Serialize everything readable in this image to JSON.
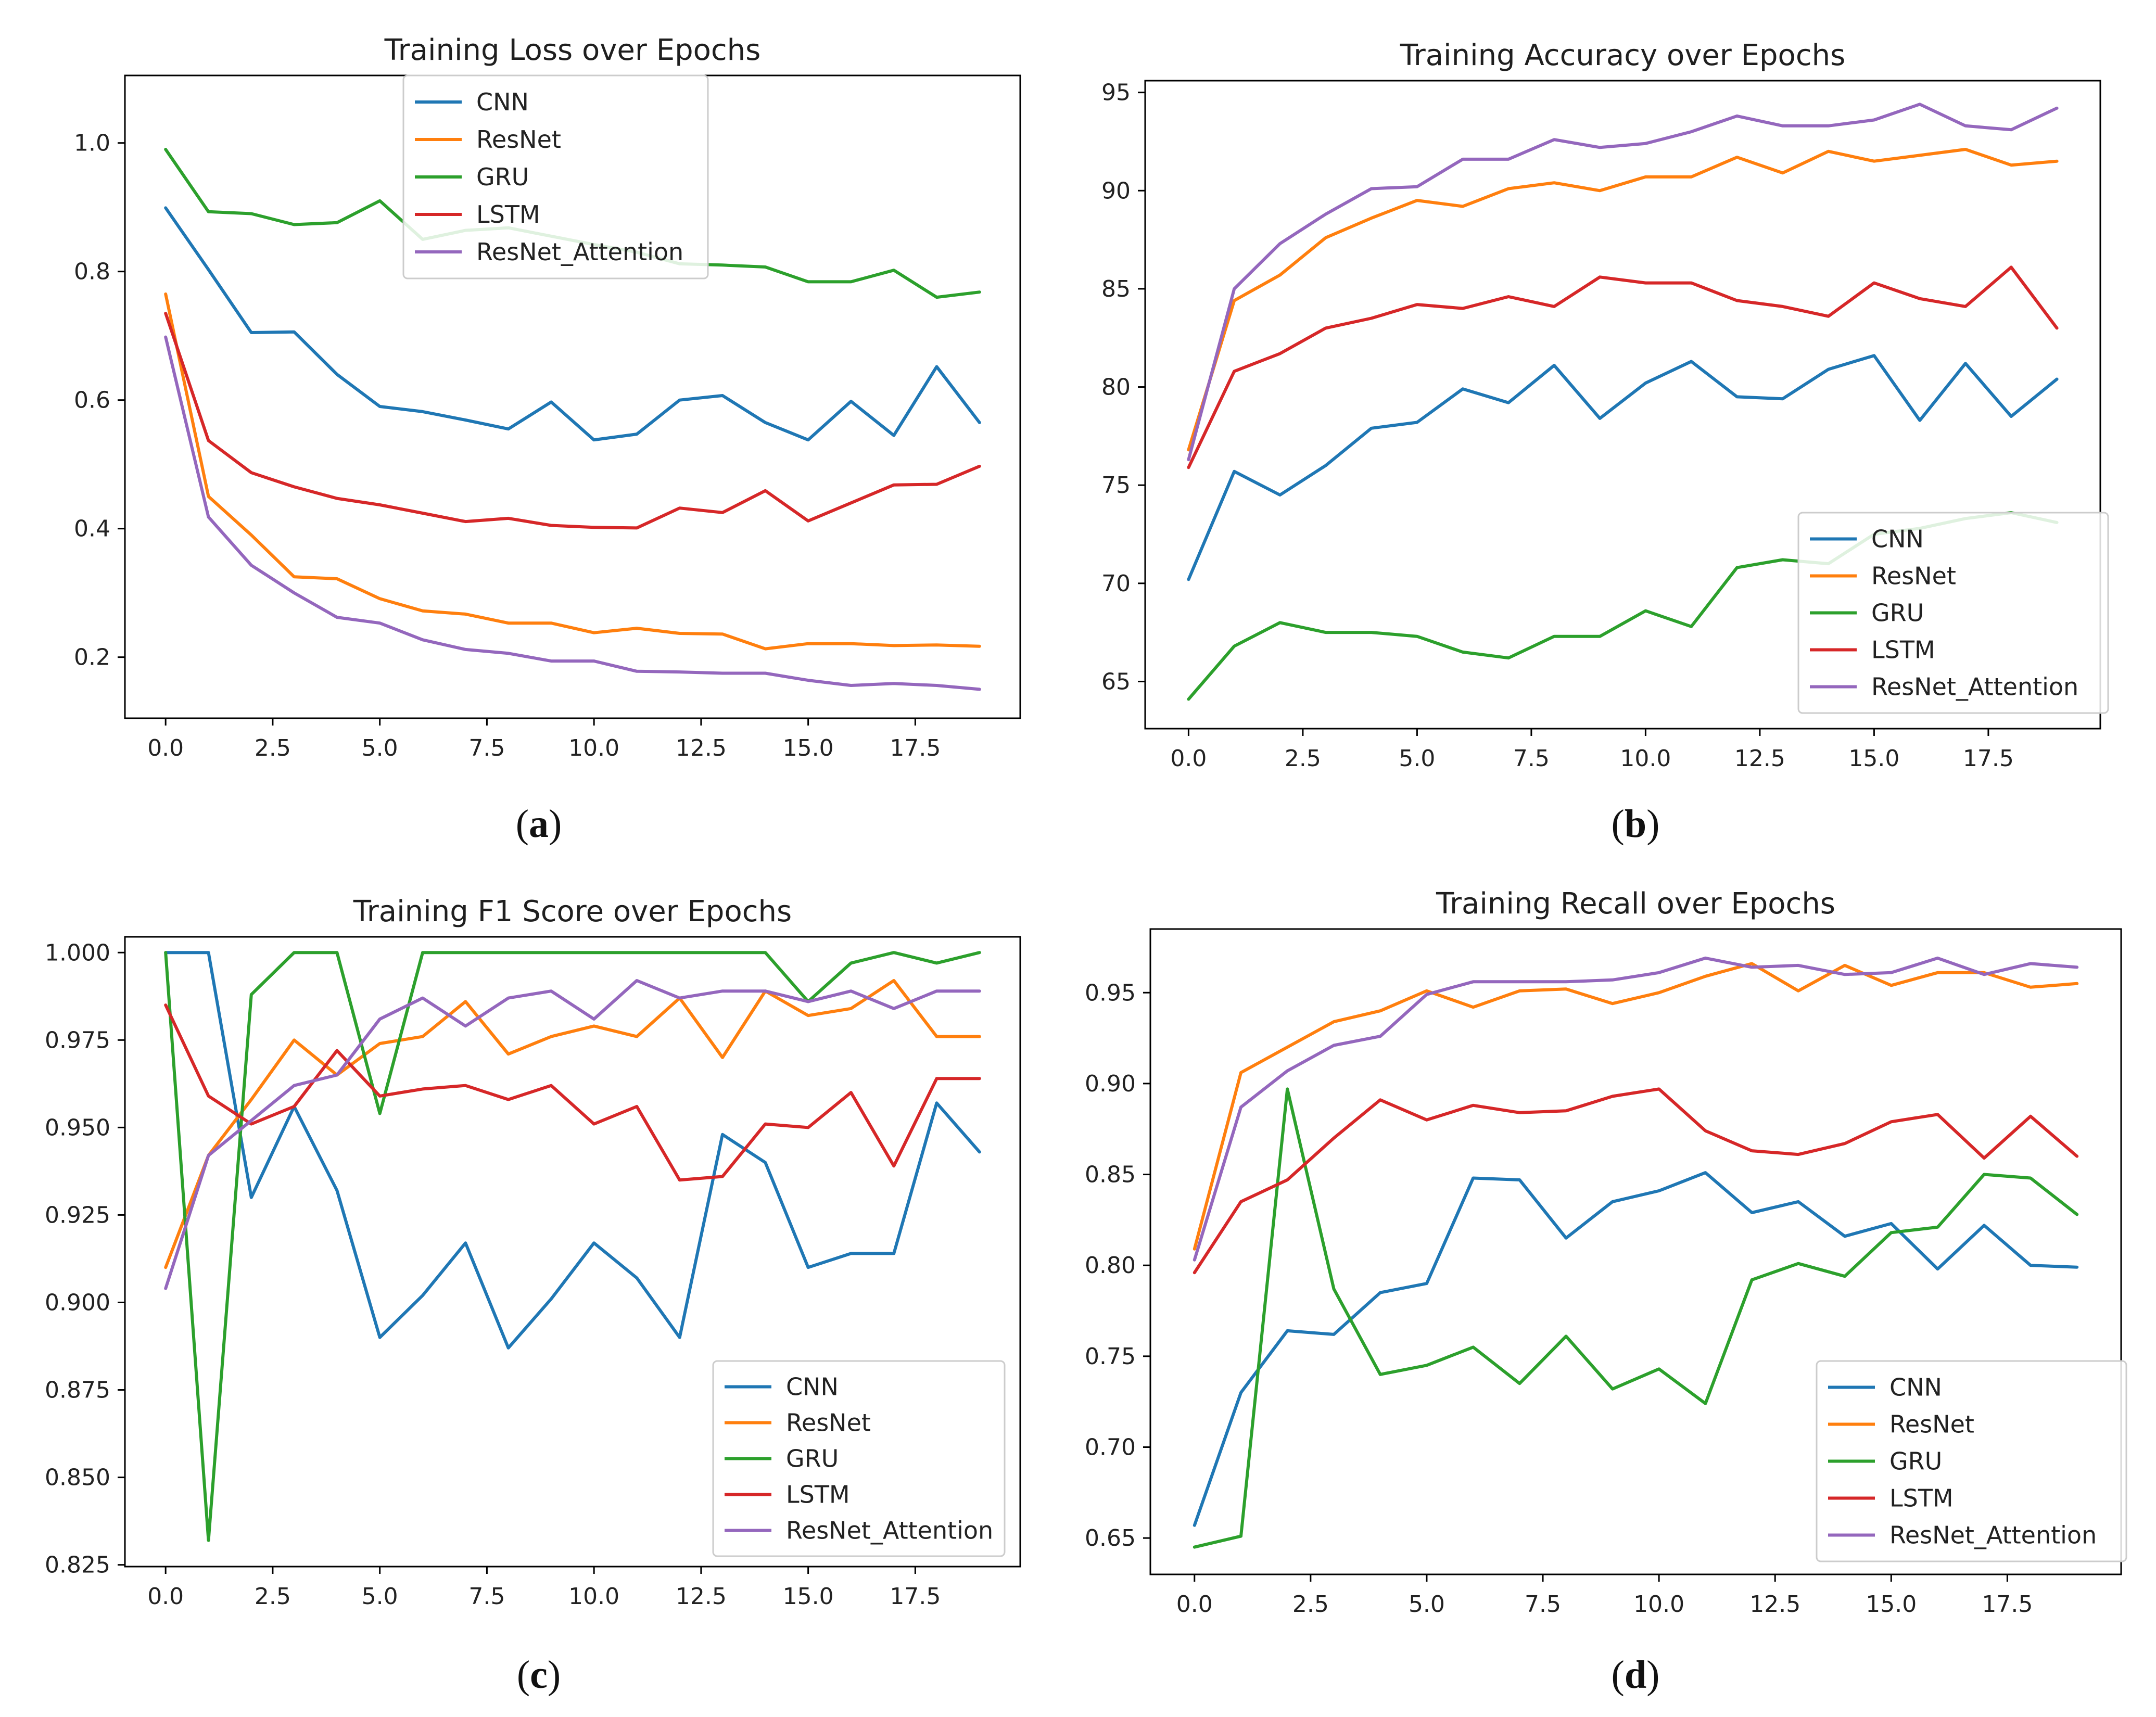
{
  "colors": {
    "CNN": "#1f77b4",
    "ResNet": "#ff7f0e",
    "GRU": "#2ca02c",
    "LSTM": "#d62728",
    "ResNet_Attention": "#9467bd"
  },
  "chart_data": [
    {
      "id": "a",
      "type": "line",
      "title": "Training Loss over Epochs",
      "caption_letter": "a",
      "xlabel": "",
      "ylabel": "",
      "xlim": [
        -0.95,
        19.95
      ],
      "ylim": [
        0.105,
        1.105
      ],
      "xticks": [
        0.0,
        2.5,
        5.0,
        7.5,
        10.0,
        12.5,
        15.0,
        17.5
      ],
      "xtick_labels": [
        "0.0",
        "2.5",
        "5.0",
        "7.5",
        "10.0",
        "12.5",
        "15.0",
        "17.5"
      ],
      "yticks": [
        0.2,
        0.4,
        0.6,
        0.8,
        1.0
      ],
      "ytick_labels": [
        "0.2",
        "0.4",
        "0.6",
        "0.8",
        "1.0"
      ],
      "legend_position": "top-center",
      "x": [
        0,
        1,
        2,
        3,
        4,
        5,
        6,
        7,
        8,
        9,
        10,
        11,
        12,
        13,
        14,
        15,
        16,
        17,
        18,
        19
      ],
      "series": [
        {
          "name": "CNN",
          "values": [
            0.899,
            0.803,
            0.705,
            0.706,
            0.64,
            0.59,
            0.582,
            0.569,
            0.555,
            0.597,
            0.538,
            0.547,
            0.6,
            0.607,
            0.565,
            0.538,
            0.598,
            0.545,
            0.652,
            0.565
          ]
        },
        {
          "name": "ResNet",
          "values": [
            0.765,
            0.45,
            0.39,
            0.325,
            0.322,
            0.291,
            0.272,
            0.267,
            0.253,
            0.253,
            0.238,
            0.245,
            0.237,
            0.236,
            0.213,
            0.221,
            0.221,
            0.218,
            0.219,
            0.217
          ]
        },
        {
          "name": "GRU",
          "values": [
            0.99,
            0.893,
            0.89,
            0.873,
            0.876,
            0.91,
            0.85,
            0.864,
            0.868,
            0.855,
            0.842,
            0.83,
            0.812,
            0.81,
            0.807,
            0.784,
            0.784,
            0.802,
            0.76,
            0.768
          ]
        },
        {
          "name": "LSTM",
          "values": [
            0.735,
            0.537,
            0.487,
            0.465,
            0.447,
            0.437,
            0.424,
            0.411,
            0.416,
            0.405,
            0.402,
            0.401,
            0.432,
            0.425,
            0.459,
            0.412,
            0.44,
            0.468,
            0.469,
            0.497
          ]
        },
        {
          "name": "ResNet_Attention",
          "values": [
            0.698,
            0.418,
            0.343,
            0.3,
            0.262,
            0.253,
            0.227,
            0.212,
            0.206,
            0.194,
            0.194,
            0.178,
            0.177,
            0.175,
            0.175,
            0.164,
            0.156,
            0.159,
            0.156,
            0.15
          ]
        }
      ]
    },
    {
      "id": "b",
      "type": "line",
      "title": "Training Accuracy over Epochs",
      "caption_letter": "b",
      "xlabel": "",
      "ylabel": "",
      "xlim": [
        -0.95,
        19.95
      ],
      "ylim": [
        62.6,
        95.6
      ],
      "xticks": [
        0.0,
        2.5,
        5.0,
        7.5,
        10.0,
        12.5,
        15.0,
        17.5
      ],
      "xtick_labels": [
        "0.0",
        "2.5",
        "5.0",
        "7.5",
        "10.0",
        "12.5",
        "15.0",
        "17.5"
      ],
      "yticks": [
        65,
        70,
        75,
        80,
        85,
        90,
        95
      ],
      "ytick_labels": [
        "65",
        "70",
        "75",
        "80",
        "85",
        "90",
        "95"
      ],
      "legend_position": "lower-right",
      "x": [
        0,
        1,
        2,
        3,
        4,
        5,
        6,
        7,
        8,
        9,
        10,
        11,
        12,
        13,
        14,
        15,
        16,
        17,
        18,
        19
      ],
      "series": [
        {
          "name": "CNN",
          "values": [
            70.2,
            75.7,
            74.5,
            76.0,
            77.9,
            78.2,
            79.9,
            79.2,
            81.1,
            78.4,
            80.2,
            81.3,
            79.5,
            79.4,
            80.9,
            81.6,
            78.3,
            81.2,
            78.5,
            80.4
          ]
        },
        {
          "name": "ResNet",
          "values": [
            76.8,
            84.4,
            85.7,
            87.6,
            88.6,
            89.5,
            89.2,
            90.1,
            90.4,
            90.0,
            90.7,
            90.7,
            91.7,
            90.9,
            92.0,
            91.5,
            91.8,
            92.1,
            91.3,
            91.5
          ]
        },
        {
          "name": "GRU",
          "values": [
            64.1,
            66.8,
            68.0,
            67.5,
            67.5,
            67.3,
            66.5,
            66.2,
            67.3,
            67.3,
            68.6,
            67.8,
            70.8,
            71.2,
            71.0,
            72.5,
            72.8,
            73.3,
            73.6,
            73.1
          ]
        },
        {
          "name": "LSTM",
          "values": [
            75.9,
            80.8,
            81.7,
            83.0,
            83.5,
            84.2,
            84.0,
            84.6,
            84.1,
            85.6,
            85.3,
            85.3,
            84.4,
            84.1,
            83.6,
            85.3,
            84.5,
            84.1,
            86.1,
            83.0
          ]
        },
        {
          "name": "ResNet_Attention",
          "values": [
            76.3,
            85.0,
            87.3,
            88.8,
            90.1,
            90.2,
            91.6,
            91.6,
            92.6,
            92.2,
            92.4,
            93.0,
            93.8,
            93.3,
            93.3,
            93.6,
            94.4,
            93.3,
            93.1,
            94.2
          ]
        }
      ]
    },
    {
      "id": "c",
      "type": "line",
      "title": "Training F1 Score over Epochs",
      "caption_letter": "c",
      "xlabel": "",
      "ylabel": "",
      "xlim": [
        -0.95,
        19.95
      ],
      "ylim": [
        0.8245,
        1.0045
      ],
      "xticks": [
        0.0,
        2.5,
        5.0,
        7.5,
        10.0,
        12.5,
        15.0,
        17.5
      ],
      "xtick_labels": [
        "0.0",
        "2.5",
        "5.0",
        "7.5",
        "10.0",
        "12.5",
        "15.0",
        "17.5"
      ],
      "yticks": [
        0.825,
        0.85,
        0.875,
        0.9,
        0.925,
        0.95,
        0.975,
        1.0
      ],
      "ytick_labels": [
        "0.825",
        "0.850",
        "0.875",
        "0.900",
        "0.925",
        "0.950",
        "0.975",
        "1.000"
      ],
      "legend_position": "lower-right",
      "x": [
        0,
        1,
        2,
        3,
        4,
        5,
        6,
        7,
        8,
        9,
        10,
        11,
        12,
        13,
        14,
        15,
        16,
        17,
        18,
        19
      ],
      "series": [
        {
          "name": "CNN",
          "values": [
            1.0,
            1.0,
            0.93,
            0.956,
            0.932,
            0.89,
            0.902,
            0.917,
            0.887,
            0.901,
            0.917,
            0.907,
            0.89,
            0.948,
            0.94,
            0.91,
            0.914,
            0.914,
            0.957,
            0.943
          ]
        },
        {
          "name": "ResNet",
          "values": [
            0.91,
            0.942,
            0.958,
            0.975,
            0.965,
            0.974,
            0.976,
            0.986,
            0.971,
            0.976,
            0.979,
            0.976,
            0.987,
            0.97,
            0.989,
            0.982,
            0.984,
            0.992,
            0.976,
            0.976
          ]
        },
        {
          "name": "GRU",
          "values": [
            1.0,
            0.832,
            0.988,
            1.0,
            1.0,
            0.954,
            1.0,
            1.0,
            1.0,
            1.0,
            1.0,
            1.0,
            1.0,
            1.0,
            1.0,
            0.986,
            0.997,
            1.0,
            0.997,
            1.0
          ]
        },
        {
          "name": "LSTM",
          "values": [
            0.985,
            0.959,
            0.951,
            0.956,
            0.972,
            0.959,
            0.961,
            0.962,
            0.958,
            0.962,
            0.951,
            0.956,
            0.935,
            0.936,
            0.951,
            0.95,
            0.96,
            0.939,
            0.964,
            0.964
          ]
        },
        {
          "name": "ResNet_Attention",
          "values": [
            0.904,
            0.942,
            0.952,
            0.962,
            0.965,
            0.981,
            0.987,
            0.979,
            0.987,
            0.989,
            0.981,
            0.992,
            0.987,
            0.989,
            0.989,
            0.986,
            0.989,
            0.984,
            0.989,
            0.989
          ]
        }
      ]
    },
    {
      "id": "d",
      "type": "line",
      "title": "Training Recall over Epochs",
      "caption_letter": "d",
      "xlabel": "",
      "ylabel": "",
      "xlim": [
        -0.95,
        19.95
      ],
      "ylim": [
        0.63,
        0.985
      ],
      "xticks": [
        0.0,
        2.5,
        5.0,
        7.5,
        10.0,
        12.5,
        15.0,
        17.5
      ],
      "xtick_labels": [
        "0.0",
        "2.5",
        "5.0",
        "7.5",
        "10.0",
        "12.5",
        "15.0",
        "17.5"
      ],
      "yticks": [
        0.65,
        0.7,
        0.75,
        0.8,
        0.85,
        0.9,
        0.95
      ],
      "ytick_labels": [
        "0.65",
        "0.70",
        "0.75",
        "0.80",
        "0.85",
        "0.90",
        "0.95"
      ],
      "legend_position": "lower-right",
      "x": [
        0,
        1,
        2,
        3,
        4,
        5,
        6,
        7,
        8,
        9,
        10,
        11,
        12,
        13,
        14,
        15,
        16,
        17,
        18,
        19
      ],
      "series": [
        {
          "name": "CNN",
          "values": [
            0.657,
            0.73,
            0.764,
            0.762,
            0.785,
            0.79,
            0.848,
            0.847,
            0.815,
            0.835,
            0.841,
            0.851,
            0.829,
            0.835,
            0.816,
            0.823,
            0.798,
            0.822,
            0.8,
            0.799
          ]
        },
        {
          "name": "ResNet",
          "values": [
            0.809,
            0.906,
            0.92,
            0.934,
            0.94,
            0.951,
            0.942,
            0.951,
            0.952,
            0.944,
            0.95,
            0.959,
            0.966,
            0.951,
            0.965,
            0.954,
            0.961,
            0.961,
            0.953,
            0.955
          ]
        },
        {
          "name": "GRU",
          "values": [
            0.645,
            0.651,
            0.897,
            0.787,
            0.74,
            0.745,
            0.755,
            0.735,
            0.761,
            0.732,
            0.743,
            0.724,
            0.792,
            0.801,
            0.794,
            0.818,
            0.821,
            0.85,
            0.848,
            0.828
          ]
        },
        {
          "name": "LSTM",
          "values": [
            0.796,
            0.835,
            0.847,
            0.87,
            0.891,
            0.88,
            0.888,
            0.884,
            0.885,
            0.893,
            0.897,
            0.874,
            0.863,
            0.861,
            0.867,
            0.879,
            0.883,
            0.859,
            0.882,
            0.86
          ]
        },
        {
          "name": "ResNet_Attention",
          "values": [
            0.803,
            0.887,
            0.907,
            0.921,
            0.926,
            0.949,
            0.956,
            0.956,
            0.956,
            0.957,
            0.961,
            0.969,
            0.964,
            0.965,
            0.96,
            0.961,
            0.969,
            0.96,
            0.966,
            0.964
          ]
        }
      ]
    }
  ]
}
